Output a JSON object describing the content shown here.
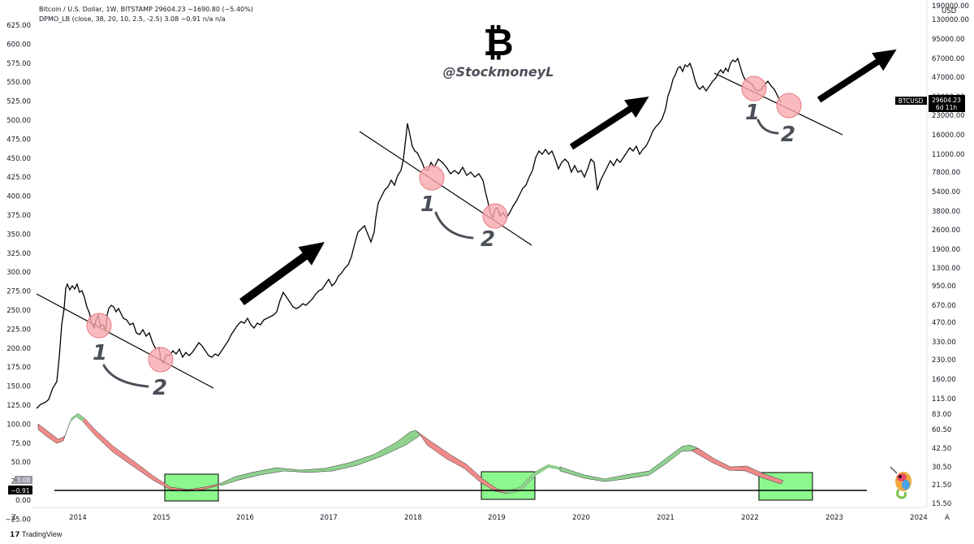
{
  "header": {
    "title_line": "Bitcoin / U.S. Dollar, 1W, BITSTAMP  29604.23  −1690.80 (−5.40%)",
    "indicator_line": "DPMO_LB (close, 38, 20, 10, 2.5, -2.5)  3.08  −0.91  n/a  n/a"
  },
  "watermark": {
    "symbol": "₿",
    "handle": "@StockmoneyL"
  },
  "brand": "TradingView",
  "axes": {
    "left_ticks": [
      "625.00",
      "600.00",
      "575.00",
      "550.00",
      "525.00",
      "500.00",
      "475.00",
      "450.00",
      "425.00",
      "400.00",
      "375.00",
      "350.00",
      "325.00",
      "300.00",
      "275.00",
      "250.00",
      "225.00",
      "200.00",
      "175.00",
      "150.00",
      "125.00",
      "100.00",
      "75.00",
      "50.00",
      "25.00",
      "0.00",
      "−25.00"
    ],
    "right_ticks": [
      "190000.00",
      "130000.00",
      "95000.00",
      "67000.00",
      "47000.00",
      "33000.00",
      "23000.00",
      "16000.00",
      "11000.00",
      "7800.00",
      "5400.00",
      "3800.00",
      "2600.00",
      "1900.00",
      "1300.00",
      "950.00",
      "670.00",
      "470.00",
      "330.00",
      "230.00",
      "160.00",
      "115.00",
      "83.00",
      "60.50",
      "42.50",
      "30.50",
      "21.50",
      "15.50"
    ],
    "right_unit": "USD",
    "x_ticks": [
      "2014",
      "2015",
      "2016",
      "2017",
      "2018",
      "2019",
      "2020",
      "2021",
      "2022",
      "2023",
      "2024"
    ],
    "corner_left": "Z",
    "corner_right": "A"
  },
  "labels": {
    "price_tag": "BTCUSD",
    "price_value": "29604.23",
    "price_time": "6d 11h",
    "ind_value_1": "3.08",
    "ind_value_2": "−0.91",
    "one": "1",
    "two": "2"
  },
  "colors": {
    "price_line": "#000000",
    "osc_up_fill": "#8fd18f",
    "osc_down_fill": "#f08a8a",
    "box_fill": "#8cf78c",
    "circle_fill": "#f7a9ae",
    "arrow": "#000000"
  },
  "chart_data": {
    "type": "line",
    "price_scale": "log",
    "series": [
      {
        "name": "BTCUSD",
        "x": [
          "2013-10",
          "2013-11",
          "2013-12",
          "2014-02",
          "2014-04",
          "2014-06",
          "2014-08",
          "2014-10",
          "2014-12",
          "2015-01",
          "2015-04",
          "2015-07",
          "2015-10",
          "2016-01",
          "2016-06",
          "2016-10",
          "2017-01",
          "2017-04",
          "2017-07",
          "2017-10",
          "2017-12",
          "2018-02",
          "2018-05",
          "2018-08",
          "2018-11",
          "2019-01",
          "2019-04",
          "2019-06",
          "2019-09",
          "2019-12",
          "2020-03",
          "2020-06",
          "2020-09",
          "2020-12",
          "2021-01",
          "2021-04",
          "2021-07",
          "2021-09",
          "2021-11",
          "2022-01",
          "2022-03",
          "2022-05",
          "2022-06"
        ],
        "values": [
          120,
          200,
          1000,
          600,
          430,
          620,
          560,
          370,
          320,
          220,
          230,
          280,
          250,
          400,
          650,
          620,
          950,
          1200,
          2600,
          5800,
          19000,
          8000,
          8500,
          6500,
          3900,
          3600,
          5300,
          11000,
          8200,
          7200,
          5000,
          9300,
          10500,
          23000,
          40000,
          60000,
          33000,
          47000,
          65000,
          38000,
          45000,
          30000,
          29604
        ]
      },
      {
        "name": "DPMO_LB",
        "x": [
          "2013-10",
          "2013-12",
          "2014-04",
          "2014-10",
          "2015-01",
          "2015-07",
          "2016-01",
          "2016-07",
          "2017-01",
          "2017-07",
          "2017-12",
          "2018-06",
          "2018-11",
          "2019-01",
          "2019-06",
          "2019-10",
          "2020-03",
          "2020-09",
          "2021-03",
          "2021-07",
          "2021-11",
          "2022-03",
          "2022-06"
        ],
        "values": [
          75,
          52,
          60,
          35,
          5,
          0,
          10,
          25,
          25,
          45,
          65,
          35,
          8,
          0,
          30,
          12,
          8,
          22,
          45,
          28,
          25,
          10,
          3.08
        ]
      }
    ],
    "y2_ticks": [
      "100.00",
      "75.00",
      "50.00",
      "25.00",
      "0.00",
      "−25.00"
    ],
    "zero_line_value": -0.91
  }
}
